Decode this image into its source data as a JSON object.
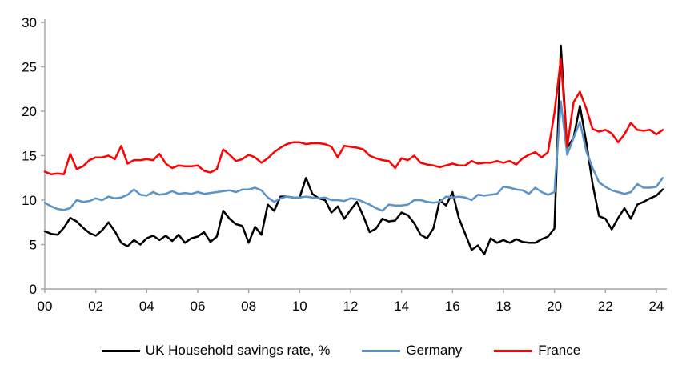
{
  "chart_data": {
    "type": "line",
    "title": "",
    "xlabel": "",
    "ylabel": "",
    "x_start_year": 2000,
    "x_step_years": 0.25,
    "x_axis": {
      "tick_years": [
        2000,
        2002,
        2004,
        2006,
        2008,
        2010,
        2012,
        2014,
        2016,
        2018,
        2020,
        2022,
        2024
      ],
      "tick_labels": [
        "00",
        "02",
        "04",
        "06",
        "08",
        "10",
        "12",
        "14",
        "16",
        "18",
        "20",
        "22",
        "24"
      ]
    },
    "y_axis": {
      "min": 0,
      "max": 30,
      "step": 5,
      "ticks": [
        0,
        5,
        10,
        15,
        20,
        25,
        30
      ],
      "tick_labels": [
        "0",
        "5",
        "10",
        "15",
        "20",
        "25",
        "30"
      ]
    },
    "grid": false,
    "legend_position": "bottom",
    "series": [
      {
        "name": "UK Household savings rate, %",
        "color": "#000000",
        "values": [
          6.5,
          6.2,
          6.1,
          6.9,
          8.0,
          7.6,
          6.9,
          6.3,
          6.0,
          6.6,
          7.5,
          6.5,
          5.2,
          4.8,
          5.5,
          5.0,
          5.7,
          6.0,
          5.5,
          6.0,
          5.4,
          6.1,
          5.2,
          5.7,
          5.9,
          6.4,
          5.3,
          5.9,
          8.8,
          7.9,
          7.3,
          7.1,
          5.2,
          7.0,
          6.1,
          9.5,
          8.8,
          10.4,
          10.4,
          10.3,
          10.3,
          12.5,
          10.7,
          10.2,
          10.0,
          8.6,
          9.3,
          7.9,
          8.9,
          9.8,
          8.2,
          6.4,
          6.8,
          7.9,
          7.6,
          7.7,
          8.6,
          8.3,
          7.4,
          6.1,
          5.7,
          6.8,
          10.0,
          9.4,
          10.9,
          8.0,
          6.2,
          4.4,
          4.9,
          3.9,
          5.7,
          5.2,
          5.5,
          5.2,
          5.6,
          5.3,
          5.2,
          5.2,
          5.6,
          5.9,
          6.8,
          27.4,
          15.9,
          17.0,
          20.6,
          16.5,
          11.8,
          8.2,
          7.9,
          6.7,
          8.0,
          9.1,
          7.9,
          9.5,
          9.8,
          10.2,
          10.5,
          11.2
        ]
      },
      {
        "name": "Germany",
        "color": "#5b92c8",
        "values": [
          9.7,
          9.3,
          9.0,
          8.9,
          9.1,
          10.0,
          9.8,
          9.9,
          10.2,
          10.0,
          10.4,
          10.2,
          10.3,
          10.6,
          11.2,
          10.6,
          10.5,
          10.9,
          10.6,
          10.7,
          11.0,
          10.7,
          10.8,
          10.7,
          10.9,
          10.7,
          10.8,
          10.9,
          11.0,
          11.1,
          10.9,
          11.2,
          11.2,
          11.4,
          11.1,
          10.3,
          9.8,
          10.2,
          10.4,
          10.3,
          10.3,
          10.4,
          10.3,
          10.2,
          10.3,
          10.0,
          10.0,
          9.9,
          10.2,
          10.1,
          9.8,
          9.5,
          9.1,
          8.8,
          9.5,
          9.4,
          9.4,
          9.5,
          10.0,
          10.0,
          9.8,
          9.7,
          9.8,
          10.4,
          10.3,
          10.4,
          10.3,
          10.0,
          10.6,
          10.5,
          10.6,
          10.7,
          11.5,
          11.4,
          11.2,
          11.1,
          10.7,
          11.4,
          10.9,
          10.6,
          10.9,
          21.1,
          15.1,
          17.0,
          18.8,
          15.5,
          13.6,
          12.0,
          11.5,
          11.1,
          10.9,
          10.7,
          10.9,
          11.8,
          11.4,
          11.4,
          11.5,
          12.5
        ]
      },
      {
        "name": "France",
        "color": "#ff0000",
        "values": [
          13.2,
          12.9,
          13.0,
          12.9,
          15.2,
          13.5,
          13.8,
          14.5,
          14.8,
          14.8,
          15.0,
          14.6,
          16.1,
          14.1,
          14.5,
          14.5,
          14.6,
          14.5,
          15.2,
          14.1,
          13.6,
          13.9,
          13.8,
          13.8,
          13.9,
          13.3,
          13.1,
          13.5,
          15.7,
          15.1,
          14.4,
          14.6,
          15.1,
          14.8,
          14.2,
          14.7,
          15.4,
          15.9,
          16.3,
          16.5,
          16.5,
          16.3,
          16.4,
          16.4,
          16.3,
          16.0,
          14.8,
          16.1,
          16.0,
          15.9,
          15.7,
          15.0,
          14.7,
          14.5,
          14.4,
          13.6,
          14.7,
          14.5,
          15.0,
          14.2,
          14.0,
          13.9,
          13.7,
          13.9,
          14.1,
          13.9,
          13.9,
          14.4,
          14.1,
          14.2,
          14.2,
          14.4,
          14.2,
          14.4,
          14.0,
          14.7,
          15.1,
          15.4,
          14.8,
          15.4,
          19.8,
          25.9,
          16.0,
          21.0,
          22.2,
          20.3,
          18.0,
          17.7,
          17.9,
          17.5,
          16.5,
          17.4,
          18.7,
          17.9,
          17.8,
          17.9,
          17.4,
          17.9
        ]
      }
    ],
    "axis_color": "#a6a6a6"
  },
  "legend": {
    "items": [
      {
        "label": "UK Household savings rate, %"
      },
      {
        "label": "Germany"
      },
      {
        "label": "France"
      }
    ]
  }
}
